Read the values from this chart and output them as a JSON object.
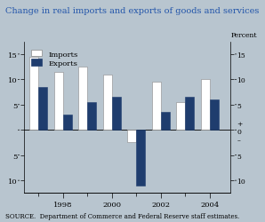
{
  "title": "Change in real imports and exports of goods and services",
  "ylabel_right": "Percent",
  "source": "SOURCE.  Department of Commerce and Federal Reserve staff estimates.",
  "years": [
    1997,
    1998,
    1999,
    2000,
    2001,
    2002,
    2003,
    2004
  ],
  "imports": [
    14.5,
    11.5,
    12.5,
    11.0,
    -2.5,
    9.5,
    5.5,
    10.0
  ],
  "exports": [
    8.5,
    3.0,
    5.5,
    6.5,
    -11.0,
    3.5,
    6.5,
    6.0
  ],
  "import_color": "#ffffff",
  "export_color": "#1f3d6e",
  "bar_edge_color": "#888888",
  "background_color": "#b8c5cf",
  "plot_bg_color": "#b8c5cf",
  "title_color": "#2255aa",
  "yticks": [
    -10,
    -5,
    0,
    5,
    10,
    15
  ],
  "ylim": [
    -12.5,
    17.5
  ],
  "xlim": [
    1996.4,
    2004.85
  ],
  "bar_width": 0.36
}
